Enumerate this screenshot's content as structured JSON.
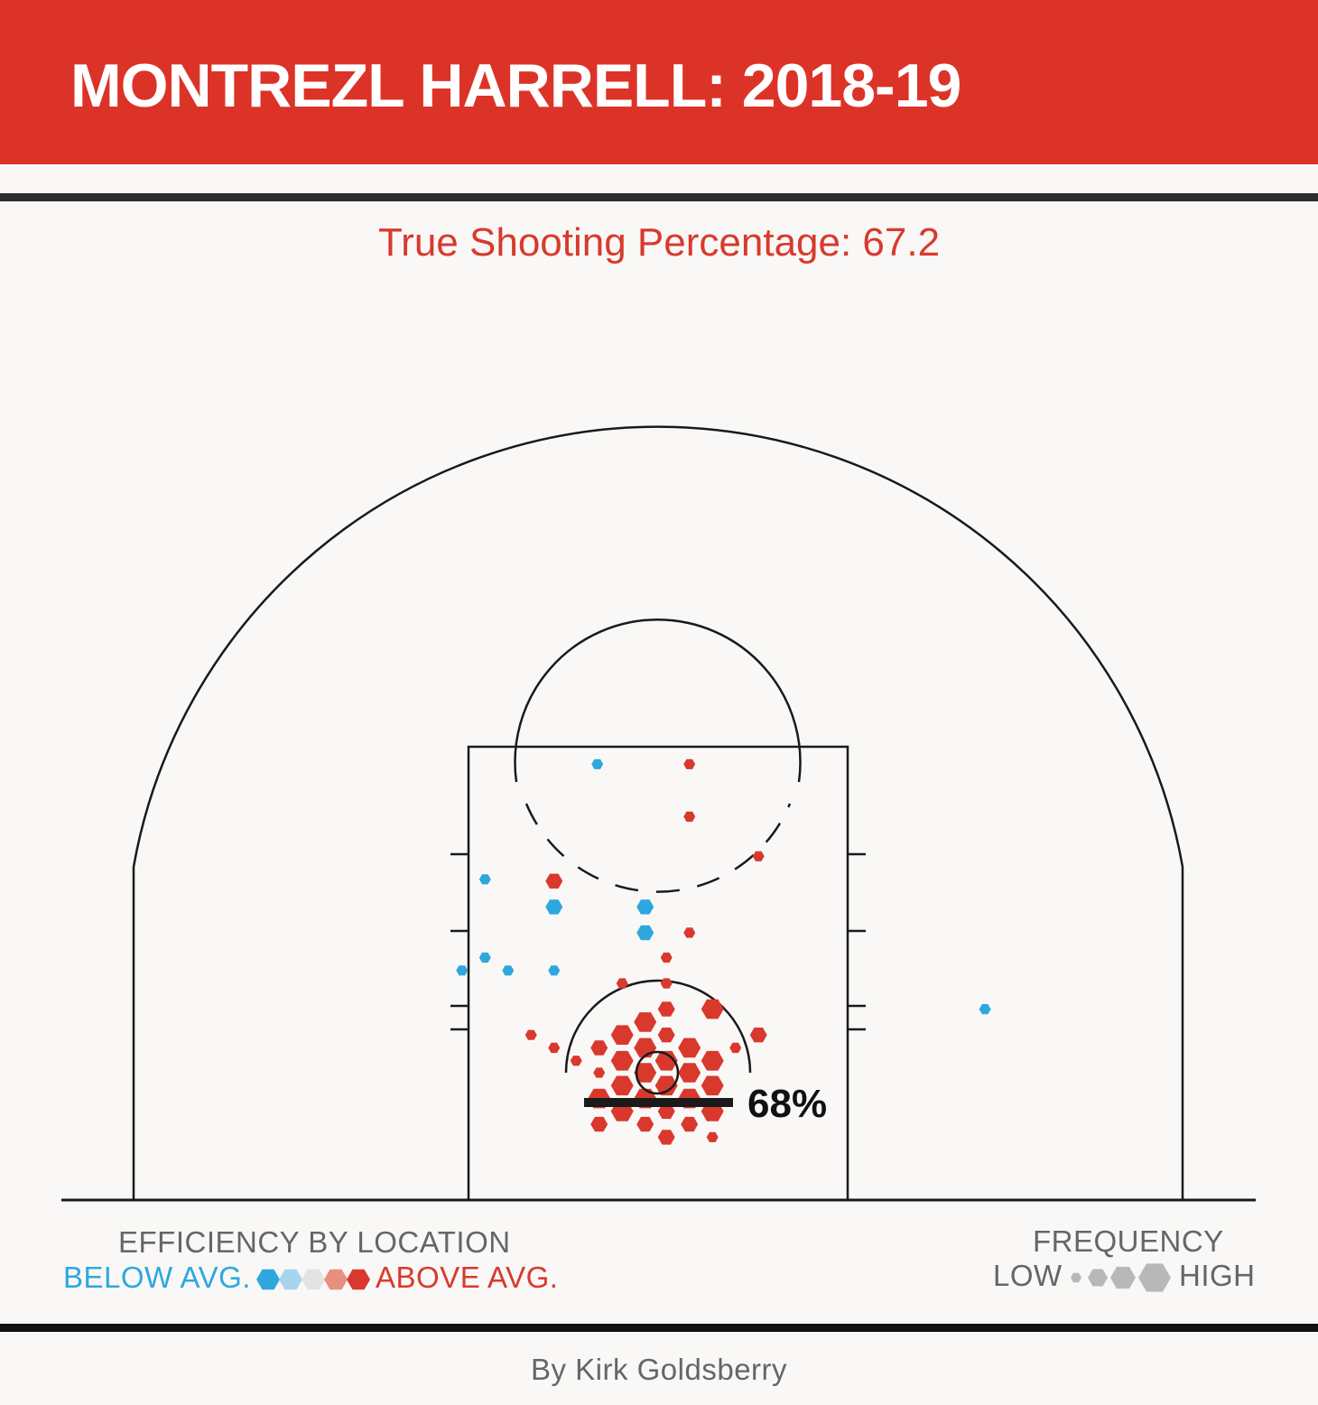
{
  "header": {
    "title": "MONTREZL HARRELL: 2018-19"
  },
  "subtitle": "True Shooting Percentage: 67.2",
  "rim_label": "68%",
  "legend": {
    "efficiency_title": "EFFICIENCY BY LOCATION",
    "below_label": "BELOW AVG.",
    "above_label": "ABOVE AVG.",
    "efficiency_colors": [
      "#2ea7df",
      "#a9d4ee",
      "#e3e3e3",
      "#e8907f",
      "#d9392d"
    ],
    "frequency_title": "FREQUENCY",
    "low_label": "LOW",
    "high_label": "HIGH",
    "frequency_color": "#b8b8b8"
  },
  "byline": "By Kirk Goldsberry",
  "colors": {
    "header": "#dc3328",
    "above": "#d9392d",
    "below": "#2ea7df",
    "court_line": "#1a1a1a"
  },
  "chart_data": {
    "type": "hexbin shot chart",
    "efficiency_scale": [
      "below",
      "above"
    ],
    "frequency_scale": [
      1,
      2,
      3,
      4
    ],
    "shots": [
      {
        "x": -6.5,
        "y": 33.5,
        "eff": "below",
        "freq": 1
      },
      {
        "x": 3.5,
        "y": 33.5,
        "eff": "above",
        "freq": 1
      },
      {
        "x": 3.5,
        "y": 27.8,
        "eff": "above",
        "freq": 1
      },
      {
        "x": 11,
        "y": 23.5,
        "eff": "above",
        "freq": 1
      },
      {
        "x": -11.2,
        "y": 20.8,
        "eff": "above",
        "freq": 2
      },
      {
        "x": -11.2,
        "y": 18.0,
        "eff": "below",
        "freq": 2
      },
      {
        "x": -1.3,
        "y": 18.0,
        "eff": "below",
        "freq": 2
      },
      {
        "x": -1.3,
        "y": 15.2,
        "eff": "below",
        "freq": 2
      },
      {
        "x": 3.5,
        "y": 15.2,
        "eff": "above",
        "freq": 1
      },
      {
        "x": -18.7,
        "y": 21.0,
        "eff": "below",
        "freq": 1
      },
      {
        "x": -18.7,
        "y": 12.5,
        "eff": "below",
        "freq": 1
      },
      {
        "x": -16.2,
        "y": 11.1,
        "eff": "below",
        "freq": 1
      },
      {
        "x": -21.2,
        "y": 11.1,
        "eff": "below",
        "freq": 1
      },
      {
        "x": -11.2,
        "y": 11.1,
        "eff": "below",
        "freq": 1
      },
      {
        "x": 1.0,
        "y": 12.5,
        "eff": "above",
        "freq": 1
      },
      {
        "x": -3.8,
        "y": 9.7,
        "eff": "above",
        "freq": 1
      },
      {
        "x": 1.0,
        "y": 9.7,
        "eff": "above",
        "freq": 1
      },
      {
        "x": 1.0,
        "y": 6.9,
        "eff": "above",
        "freq": 2
      },
      {
        "x": 6.0,
        "y": 6.9,
        "eff": "above",
        "freq": 3
      },
      {
        "x": -1.3,
        "y": 5.5,
        "eff": "above",
        "freq": 3
      },
      {
        "x": -3.8,
        "y": 4.1,
        "eff": "above",
        "freq": 3
      },
      {
        "x": 1.0,
        "y": 4.1,
        "eff": "above",
        "freq": 2
      },
      {
        "x": 11.0,
        "y": 4.1,
        "eff": "above",
        "freq": 2
      },
      {
        "x": -13.7,
        "y": 4.1,
        "eff": "above",
        "freq": 1
      },
      {
        "x": -11.2,
        "y": 2.7,
        "eff": "above",
        "freq": 1
      },
      {
        "x": -8.8,
        "y": 1.3,
        "eff": "above",
        "freq": 1
      },
      {
        "x": -6.3,
        "y": 2.7,
        "eff": "above",
        "freq": 2
      },
      {
        "x": -1.3,
        "y": 2.7,
        "eff": "above",
        "freq": 3
      },
      {
        "x": 3.5,
        "y": 2.7,
        "eff": "above",
        "freq": 3
      },
      {
        "x": 8.5,
        "y": 2.7,
        "eff": "above",
        "freq": 1
      },
      {
        "x": 6.0,
        "y": 1.3,
        "eff": "above",
        "freq": 3
      },
      {
        "x": 1.0,
        "y": 1.3,
        "eff": "above",
        "freq": 3
      },
      {
        "x": -3.8,
        "y": 1.3,
        "eff": "above",
        "freq": 3
      },
      {
        "x": -6.3,
        "y": 0.0,
        "eff": "above",
        "freq": 1
      },
      {
        "x": -1.3,
        "y": 0.0,
        "eff": "above",
        "freq": 3
      },
      {
        "x": 3.5,
        "y": 0.0,
        "eff": "above",
        "freq": 3
      },
      {
        "x": -3.8,
        "y": -1.4,
        "eff": "above",
        "freq": 3
      },
      {
        "x": 1.0,
        "y": -1.4,
        "eff": "above",
        "freq": 3
      },
      {
        "x": 6.0,
        "y": -1.4,
        "eff": "above",
        "freq": 3
      },
      {
        "x": -6.3,
        "y": -2.8,
        "eff": "above",
        "freq": 3
      },
      {
        "x": -1.3,
        "y": -2.8,
        "eff": "above",
        "freq": 3
      },
      {
        "x": 3.5,
        "y": -2.8,
        "eff": "above",
        "freq": 3
      },
      {
        "x": -3.8,
        "y": -4.2,
        "eff": "above",
        "freq": 3
      },
      {
        "x": 1.0,
        "y": -4.2,
        "eff": "above",
        "freq": 2
      },
      {
        "x": 6.0,
        "y": -4.2,
        "eff": "above",
        "freq": 3
      },
      {
        "x": -6.3,
        "y": -5.6,
        "eff": "above",
        "freq": 2
      },
      {
        "x": -1.3,
        "y": -5.6,
        "eff": "above",
        "freq": 2
      },
      {
        "x": 3.5,
        "y": -5.6,
        "eff": "above",
        "freq": 2
      },
      {
        "x": 1.0,
        "y": -7.0,
        "eff": "above",
        "freq": 2
      },
      {
        "x": 6.0,
        "y": -7.0,
        "eff": "above",
        "freq": 1
      },
      {
        "x": 35.6,
        "y": 6.9,
        "eff": "below",
        "freq": 1
      }
    ]
  }
}
